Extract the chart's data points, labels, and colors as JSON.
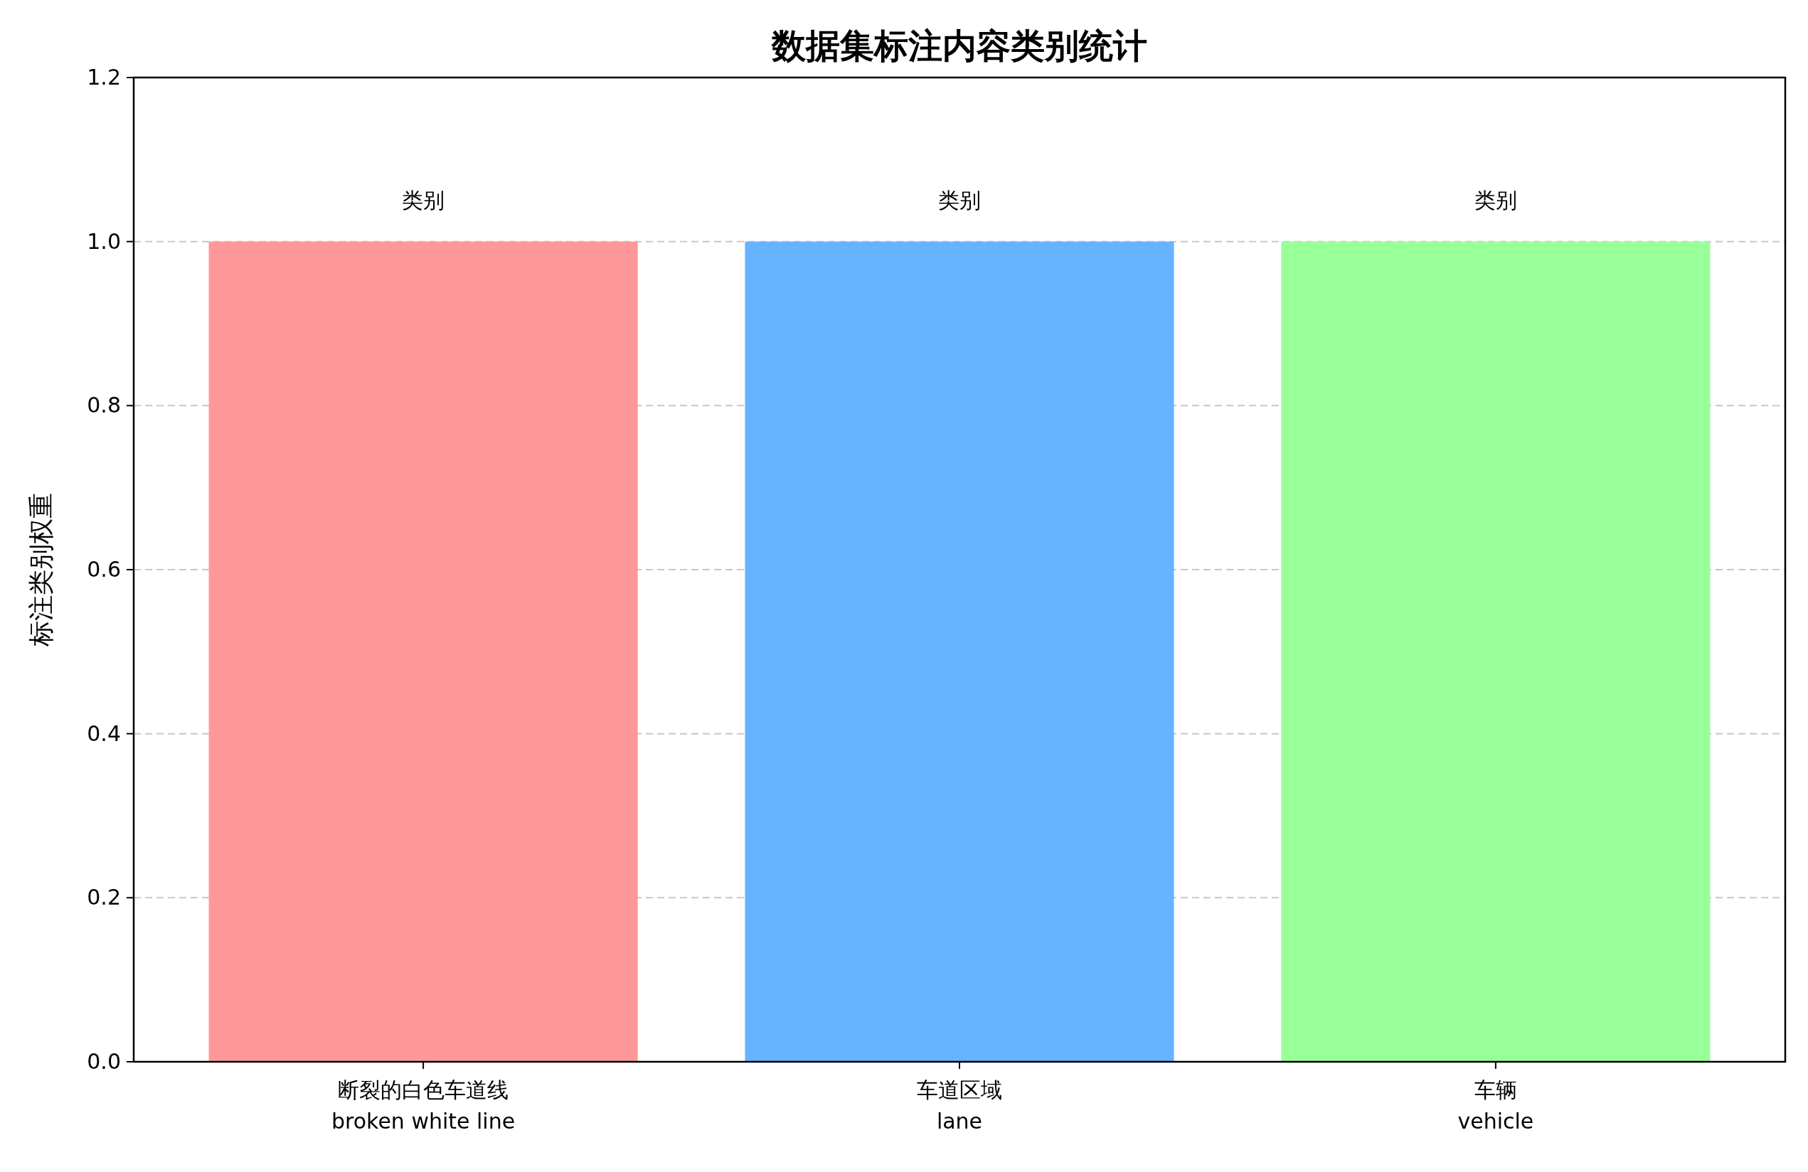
{
  "chart_data": {
    "type": "bar",
    "title": "数据集标注内容类别统计",
    "ylabel": "标注类别权重",
    "categories": [
      "断裂的白色车道线\nbroken white line",
      "车道区域\nlane",
      "车辆\nvehicle"
    ],
    "values": [
      1,
      1,
      1
    ],
    "colors": [
      "#ff9999",
      "#66b3ff",
      "#99ff99"
    ],
    "value_labels": [
      "类别",
      "类别",
      "类别"
    ],
    "ylim": [
      0,
      1.2
    ],
    "yticks": [
      {
        "value": 0,
        "label": "0.0"
      },
      0.2,
      0.4,
      0.6,
      0.8,
      {
        "value": 1,
        "label": "1.0"
      },
      1.2
    ],
    "grid": "y"
  }
}
